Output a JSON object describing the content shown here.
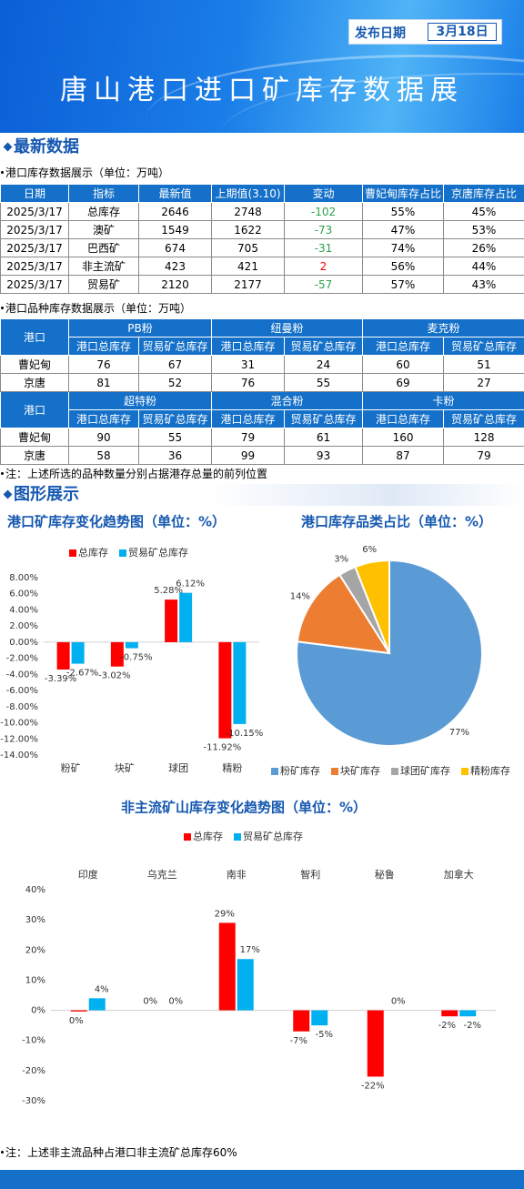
{
  "header": {
    "date_label": "发布日期",
    "date": "3月18日",
    "title": "唐山港口进口矿库存数据展"
  },
  "section1": "最新数据",
  "table1": {
    "caption": "港口库存数据展示（单位：万吨）",
    "header": [
      "日期",
      "指标",
      "最新值",
      "上期值(3.10)",
      "变动",
      "曹妃甸库存占比",
      "京唐库存占比"
    ],
    "rows": [
      [
        "2025/3/17",
        "总库存",
        "2646",
        "2748",
        "-102",
        "55%",
        "45%"
      ],
      [
        "2025/3/17",
        "澳矿",
        "1549",
        "1622",
        "-73",
        "47%",
        "53%"
      ],
      [
        "2025/3/17",
        "巴西矿",
        "674",
        "705",
        "-31",
        "74%",
        "26%"
      ],
      [
        "2025/3/17",
        "非主流矿",
        "423",
        "421",
        "2",
        "56%",
        "44%"
      ],
      [
        "2025/3/17",
        "贸易矿",
        "2120",
        "2177",
        "-57",
        "57%",
        "43%"
      ]
    ]
  },
  "table2": {
    "caption": "港口品种库存数据展示（单位：万吨）",
    "blocks": [
      {
        "port_header": "港口",
        "groups": [
          "PB粉",
          "纽曼粉",
          "麦克粉"
        ],
        "subheaders": [
          "港口总库存",
          "贸易矿总库存",
          "港口总库存",
          "贸易矿总库存",
          "港口总库存",
          "贸易矿总库存"
        ],
        "rows": [
          [
            "曹妃甸",
            "76",
            "67",
            "31",
            "24",
            "60",
            "51"
          ],
          [
            "京唐",
            "81",
            "52",
            "76",
            "55",
            "69",
            "27"
          ]
        ]
      },
      {
        "port_header": "港口",
        "groups": [
          "超特粉",
          "混合粉",
          "卡粉"
        ],
        "subheaders": [
          "港口总库存",
          "贸易矿总库存",
          "港口总库存",
          "贸易矿总库存",
          "港口总库存",
          "贸易矿总库存"
        ],
        "rows": [
          [
            "曹妃甸",
            "90",
            "55",
            "79",
            "61",
            "160",
            "128"
          ],
          [
            "京唐",
            "58",
            "36",
            "99",
            "93",
            "87",
            "79"
          ]
        ]
      }
    ]
  },
  "note1": "注：上述所选的品种数量分别占据港存总量的前列位置",
  "section2": "图形展示",
  "chart_data": [
    {
      "type": "bar",
      "title": "港口矿库存变化趋势图（单位：%）",
      "categories": [
        "粉矿",
        "块矿",
        "球团",
        "精粉"
      ],
      "series": [
        {
          "name": "总库存",
          "color": "#ff0000",
          "values": [
            -3.39,
            -3.02,
            5.28,
            -11.92
          ],
          "value_labels": [
            "-3.39%",
            "-3.02%",
            "5.28%",
            "-11.92%"
          ]
        },
        {
          "name": "贸易矿总库存",
          "color": "#00b0f0",
          "values": [
            -2.67,
            -0.75,
            6.12,
            -10.15
          ],
          "value_labels": [
            "-2.67%",
            "-0.75%",
            "6.12%",
            "-10.15%"
          ]
        }
      ],
      "ylim": [
        -14,
        8
      ],
      "yticks": [
        {
          "value": 8,
          "label": "8.00%"
        },
        {
          "value": 6,
          "label": "6.00%"
        },
        {
          "value": 4,
          "label": "4.00%"
        },
        {
          "value": 2,
          "label": "2.00%"
        },
        {
          "value": 0,
          "label": "0.00%"
        },
        {
          "value": -2,
          "label": "-2.00%"
        },
        {
          "value": -4,
          "label": "-4.00%"
        },
        {
          "value": -6,
          "label": "-6.00%"
        },
        {
          "value": -8,
          "label": "-8.00%"
        },
        {
          "value": -10,
          "label": "-10.00%"
        },
        {
          "value": -12,
          "label": "-12.00%"
        },
        {
          "value": -14,
          "label": "-14.00%"
        }
      ],
      "legend": "top"
    },
    {
      "type": "pie",
      "title": "港口库存品类占比（单位：%）",
      "categories": [
        "粉矿库存",
        "块矿库存",
        "球团矿库存",
        "精粉库存"
      ],
      "values": [
        77,
        14,
        3,
        6
      ],
      "value_labels": [
        "77%",
        "14%",
        "3%",
        "6%"
      ],
      "colors": [
        "#5b9bd5",
        "#ed7d31",
        "#a5a5a5",
        "#ffc000"
      ],
      "legend": "bottom"
    },
    {
      "type": "bar",
      "title": "非主流矿山库存变化趋势图（单位：%）",
      "categories": [
        "印度",
        "乌克兰",
        "南非",
        "智利",
        "秘鲁",
        "加拿大"
      ],
      "series": [
        {
          "name": "总库存",
          "color": "#ff0000",
          "values": [
            -0.4,
            0,
            29,
            -7,
            -22,
            -2
          ],
          "value_labels": [
            "0%",
            "0%",
            "29%",
            "-7%",
            "-22%",
            "-2%"
          ]
        },
        {
          "name": "贸易矿总库存",
          "color": "#00b0f0",
          "values": [
            4,
            0,
            17,
            -5,
            0,
            -2
          ],
          "value_labels": [
            "4%",
            "0%",
            "17%",
            "-5%",
            "0%",
            "-2%"
          ]
        }
      ],
      "ylim": [
        -30,
        40
      ],
      "yticks": [
        {
          "value": 40,
          "label": "40%"
        },
        {
          "value": 30,
          "label": "30%"
        },
        {
          "value": 20,
          "label": "20%"
        },
        {
          "value": 10,
          "label": "10%"
        },
        {
          "value": 0,
          "label": "0%"
        },
        {
          "value": -10,
          "label": "-10%"
        },
        {
          "value": -20,
          "label": "-20%"
        },
        {
          "value": -30,
          "label": "-30%"
        }
      ],
      "legend": "top"
    }
  ],
  "note2": "注：上述非主流品种占港口非主流矿总库存60%"
}
